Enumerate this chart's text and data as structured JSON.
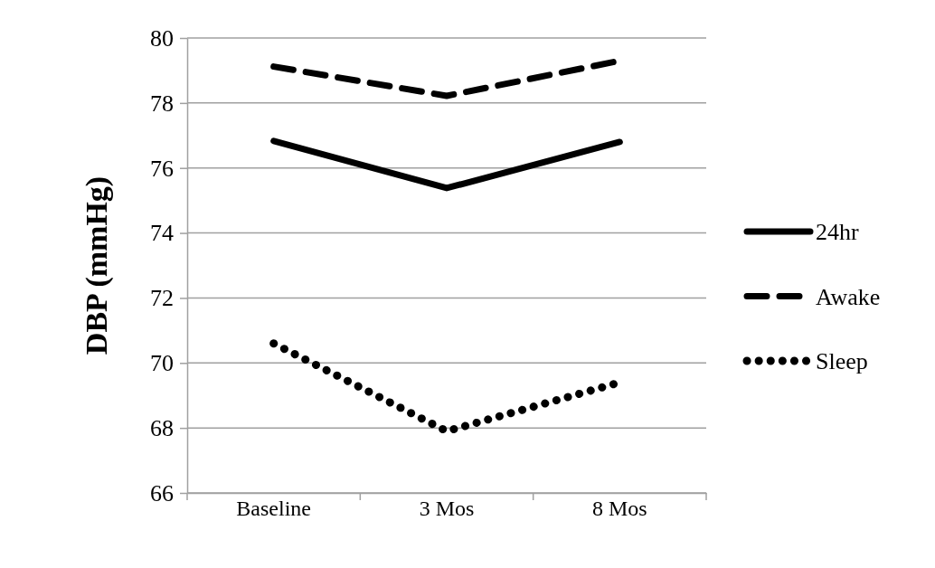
{
  "chart_data": {
    "type": "line",
    "ylabel": "DBP (mmHg)",
    "categories": [
      "Baseline",
      "3 Mos",
      "8 Mos"
    ],
    "series": [
      {
        "name": "24hr",
        "color": "#000000",
        "values": [
          76.83,
          75.38,
          76.8
        ],
        "line_style": "solid"
      },
      {
        "name": "Awake",
        "color": "#000000",
        "values": [
          79.12,
          78.22,
          79.3
        ],
        "line_style": "dashed"
      },
      {
        "name": "Sleep",
        "color": "#000000",
        "values": [
          70.6,
          67.9,
          69.4
        ],
        "line_style": "dotted"
      }
    ],
    "ylim": [
      66,
      80
    ],
    "yticks": [
      66,
      68,
      70,
      72,
      74,
      76,
      78,
      80
    ],
    "grid": "y",
    "legend": "right",
    "marker": "none"
  }
}
